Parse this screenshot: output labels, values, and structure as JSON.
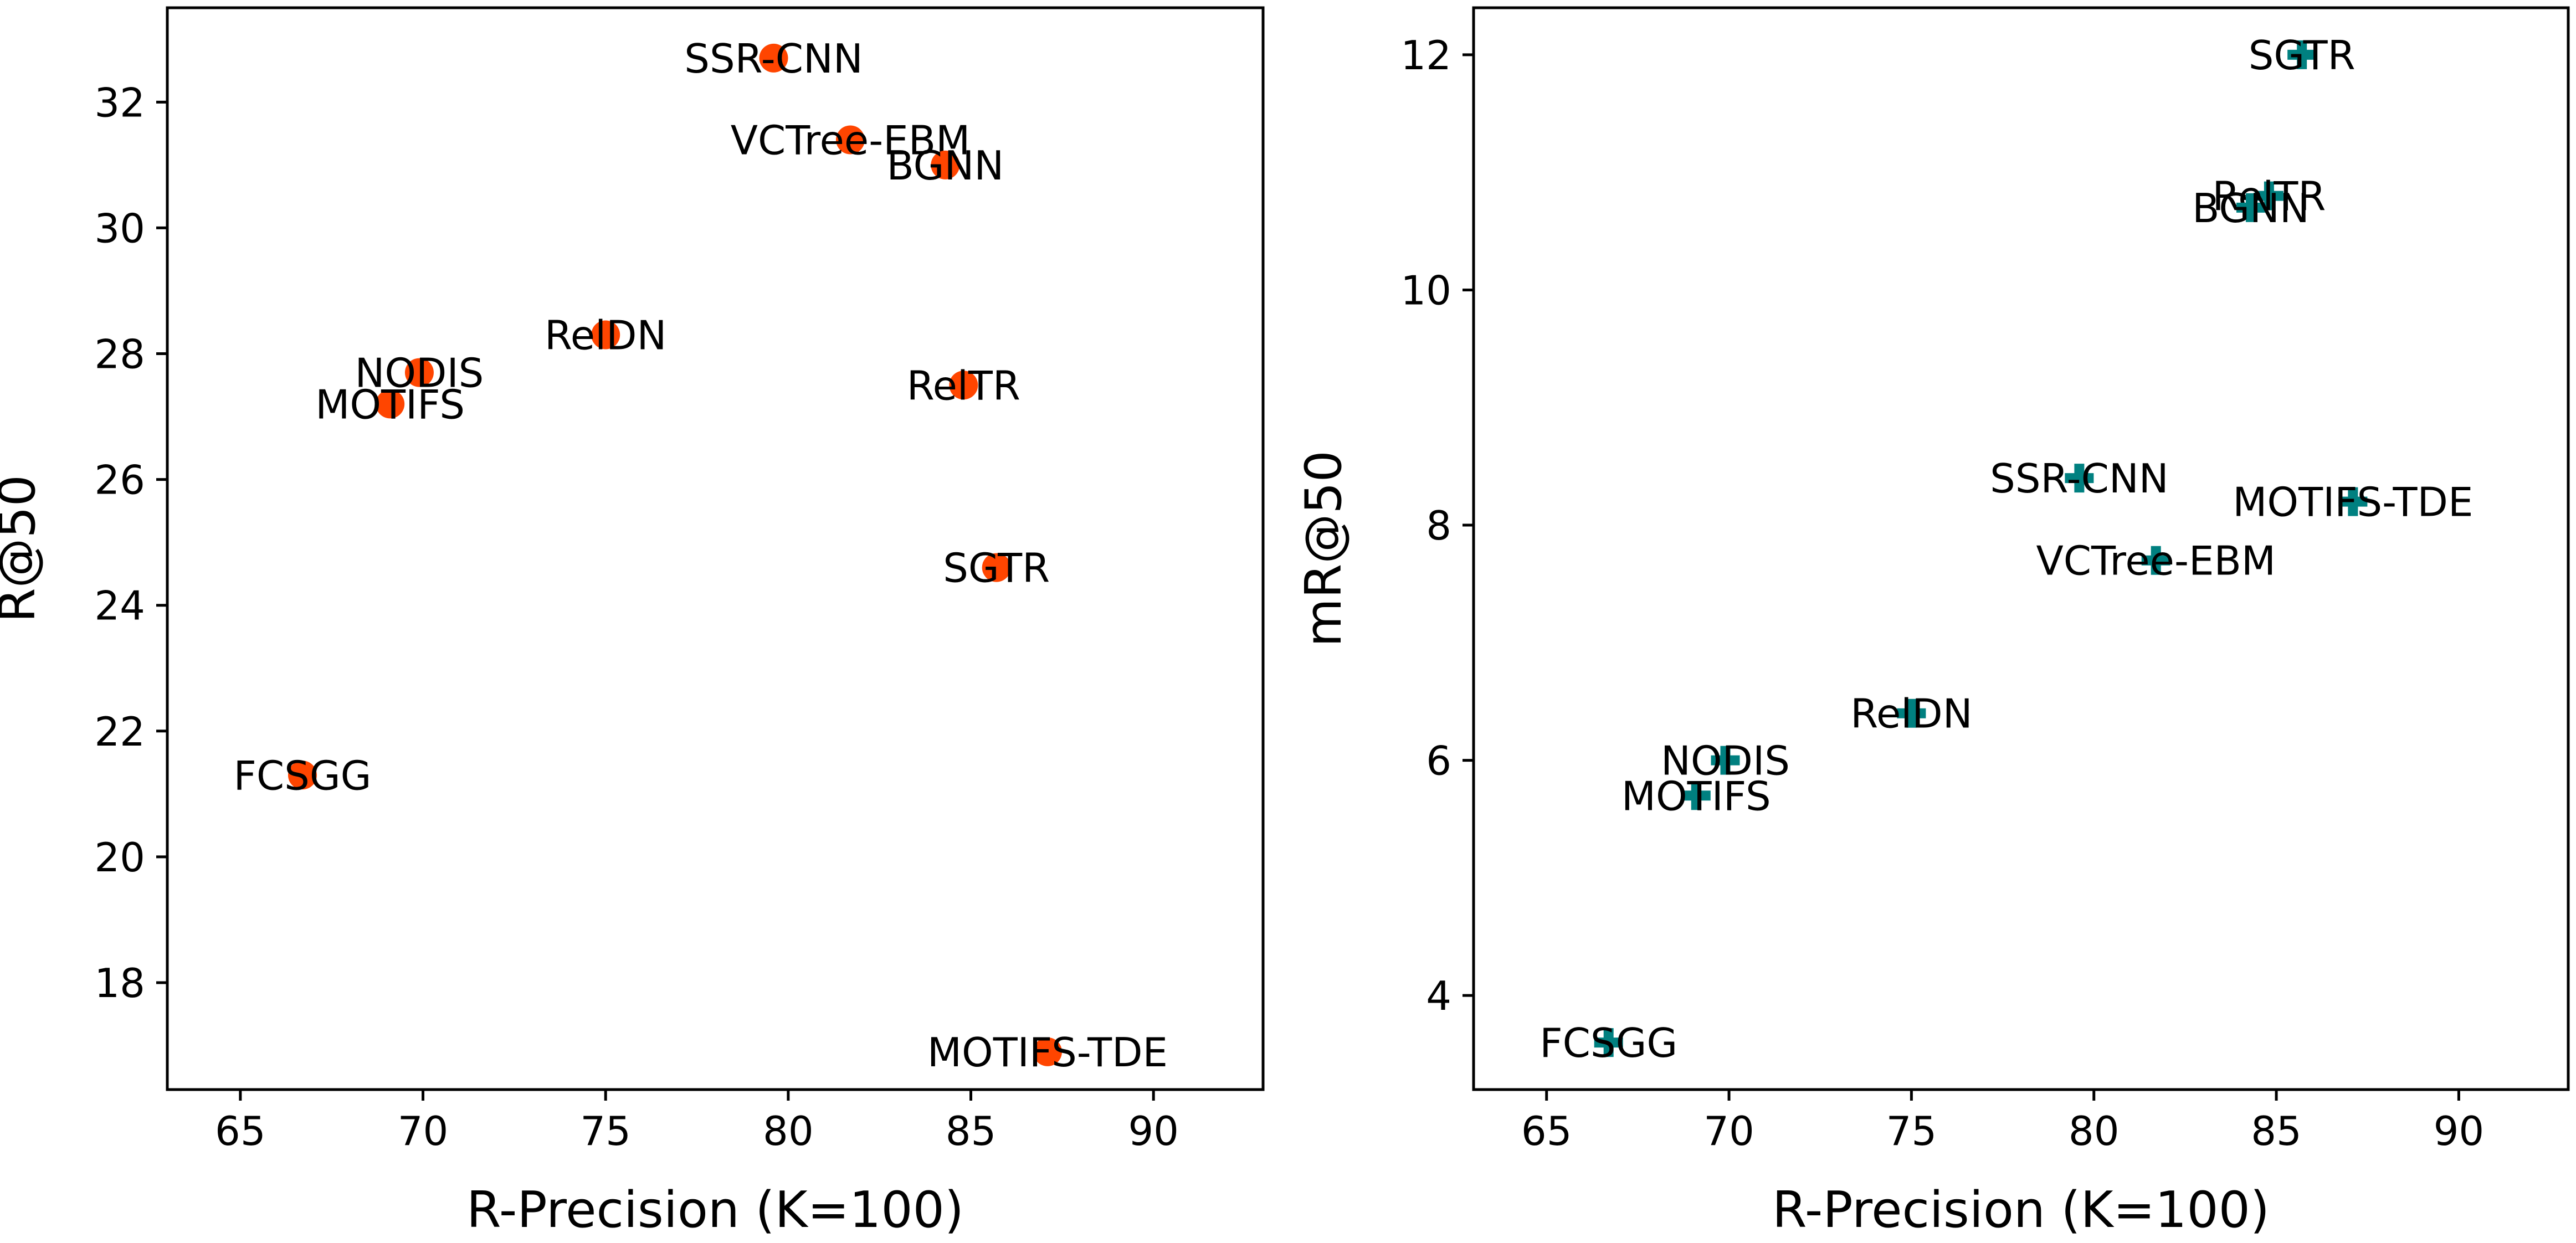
{
  "chart_data": [
    {
      "type": "scatter",
      "xlabel": "R-Precision (K=100)",
      "ylabel": "R@50",
      "xlim": [
        63,
        93
      ],
      "ylim": [
        16.3,
        33.5
      ],
      "xticks": [
        65,
        70,
        75,
        80,
        85,
        90
      ],
      "yticks": [
        18,
        20,
        22,
        24,
        26,
        28,
        30,
        32
      ],
      "marker": "circle",
      "color": "#ff4500",
      "grid": false,
      "points": [
        {
          "label": "SSR-CNN",
          "x": 79.6,
          "y": 32.7
        },
        {
          "label": "VCTree-EBM",
          "x": 81.7,
          "y": 31.4
        },
        {
          "label": "BGNN",
          "x": 84.3,
          "y": 31.0
        },
        {
          "label": "RelDN",
          "x": 75.0,
          "y": 28.3
        },
        {
          "label": "NODIS",
          "x": 69.9,
          "y": 27.7
        },
        {
          "label": "MOTIFS",
          "x": 69.1,
          "y": 27.2
        },
        {
          "label": "RelTR",
          "x": 84.8,
          "y": 27.5
        },
        {
          "label": "SGTR",
          "x": 85.7,
          "y": 24.6
        },
        {
          "label": "FCSGG",
          "x": 66.7,
          "y": 21.3
        },
        {
          "label": "MOTIFS-TDE",
          "x": 87.1,
          "y": 16.9
        }
      ]
    },
    {
      "type": "scatter",
      "xlabel": "R-Precision (K=100)",
      "ylabel": "mR@50",
      "xlim": [
        63,
        93
      ],
      "ylim": [
        3.2,
        12.4
      ],
      "xticks": [
        65,
        70,
        75,
        80,
        85,
        90
      ],
      "yticks": [
        4,
        6,
        8,
        10,
        12
      ],
      "marker": "plus",
      "color": "#008080",
      "grid": false,
      "points": [
        {
          "label": "SGTR",
          "x": 85.7,
          "y": 12.0
        },
        {
          "label": "RelTR",
          "x": 84.8,
          "y": 10.8
        },
        {
          "label": "BGNN",
          "x": 84.3,
          "y": 10.7
        },
        {
          "label": "SSR-CNN",
          "x": 79.6,
          "y": 8.4
        },
        {
          "label": "MOTIFS-TDE",
          "x": 87.1,
          "y": 8.2
        },
        {
          "label": "VCTree-EBM",
          "x": 81.7,
          "y": 7.7
        },
        {
          "label": "RelDN",
          "x": 75.0,
          "y": 6.4
        },
        {
          "label": "NODIS",
          "x": 69.9,
          "y": 6.0
        },
        {
          "label": "MOTIFS",
          "x": 69.1,
          "y": 5.7
        },
        {
          "label": "FCSGG",
          "x": 66.7,
          "y": 3.6
        }
      ]
    }
  ]
}
